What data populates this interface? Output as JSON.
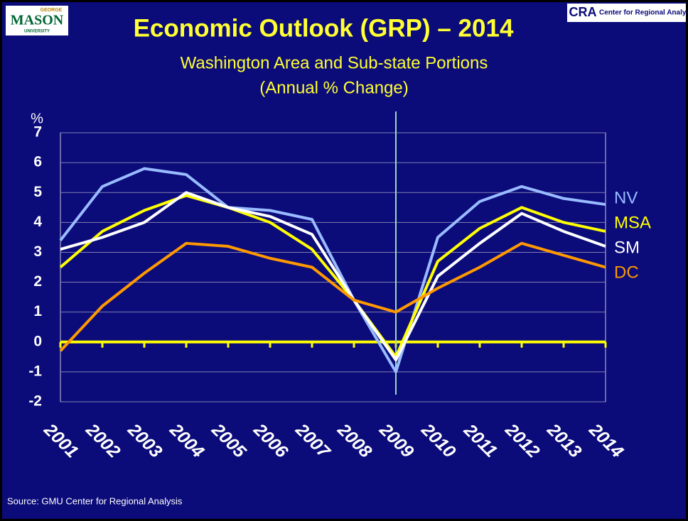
{
  "logos": {
    "left_top": "GEORGE",
    "left_main": "MASON",
    "left_bottom": "UNIVERSITY",
    "right_main": "CRA",
    "right_text": "Center for Regional Analysis"
  },
  "chart_data": {
    "type": "line",
    "title": "Economic Outlook (GRP) – 2014",
    "subtitle": [
      "Washington Area and Sub-state Portions",
      "(Annual % Change)"
    ],
    "y_label": "%",
    "source": "Source: GMU Center for Regional Analysis",
    "categories": [
      "2001",
      "2002",
      "2003",
      "2004",
      "2005",
      "2006",
      "2007",
      "2008",
      "2009",
      "2010",
      "2011",
      "2012",
      "2013",
      "2014"
    ],
    "series": [
      {
        "name": "NV",
        "color": "#99bbff",
        "values": [
          3.4,
          5.2,
          5.8,
          5.6,
          4.5,
          4.4,
          4.1,
          1.4,
          -1.0,
          3.5,
          4.7,
          5.2,
          4.8,
          4.6
        ]
      },
      {
        "name": "MSA",
        "color": "#ffff00",
        "values": [
          2.5,
          3.7,
          4.4,
          4.9,
          4.5,
          4.0,
          3.1,
          1.4,
          -0.5,
          2.7,
          3.8,
          4.5,
          4.0,
          3.7
        ]
      },
      {
        "name": "SM",
        "color": "#ffffff",
        "values": [
          3.1,
          3.5,
          4.0,
          5.0,
          4.5,
          4.2,
          3.6,
          1.4,
          -0.6,
          2.2,
          3.3,
          4.3,
          3.7,
          3.2
        ]
      },
      {
        "name": "DC",
        "color": "#ff9900",
        "values": [
          -0.3,
          1.2,
          2.3,
          3.3,
          3.2,
          2.8,
          2.5,
          1.4,
          1.0,
          1.8,
          2.5,
          3.3,
          2.9,
          2.5
        ]
      }
    ],
    "ylim": [
      -2,
      7
    ],
    "yticks": [
      -2,
      -1,
      0,
      1,
      2,
      3,
      4,
      5,
      6,
      7
    ],
    "grid": true,
    "zero_line_color": "#ffff00",
    "vline_category": "2009",
    "vline_color": "#99ddbb"
  }
}
